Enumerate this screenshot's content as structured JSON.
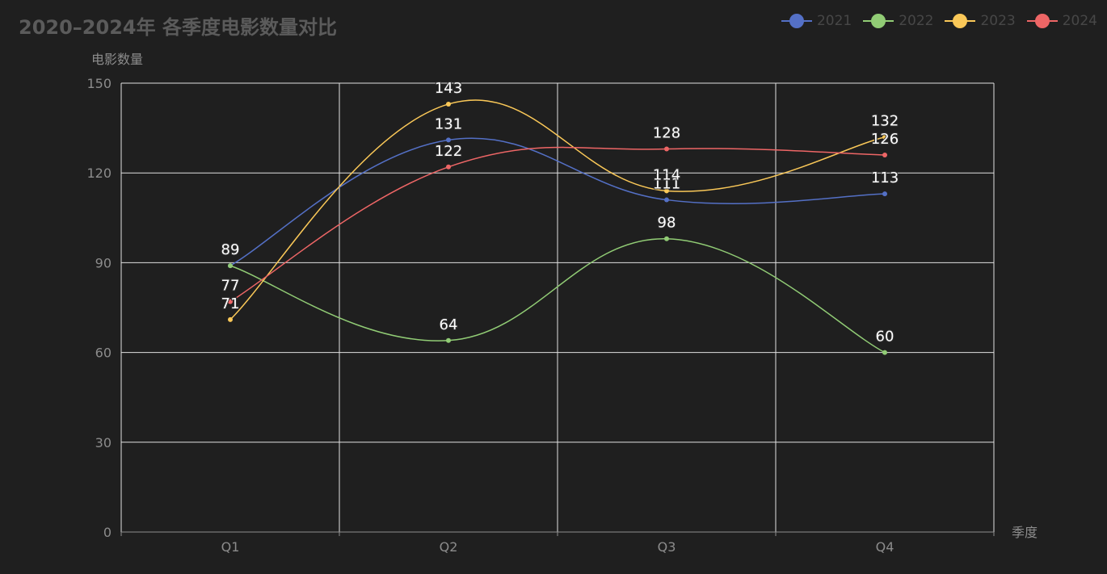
{
  "chart_data": {
    "type": "line",
    "title": "2020–2024年 各季度电影数量对比",
    "xlabel": "季度",
    "ylabel": "电影数量",
    "categories": [
      "Q1",
      "Q2",
      "Q3",
      "Q4"
    ],
    "ylim": [
      0,
      150
    ],
    "yticks": [
      0,
      30,
      60,
      90,
      120,
      150
    ],
    "grid": true,
    "smooth": true,
    "legend_position": "top-right",
    "series": [
      {
        "name": "2021",
        "color": "#5470c6",
        "values": [
          89,
          131,
          111,
          113
        ]
      },
      {
        "name": "2022",
        "color": "#91cc75",
        "values": [
          89,
          64,
          98,
          60
        ]
      },
      {
        "name": "2023",
        "color": "#fac858",
        "values": [
          71,
          143,
          114,
          132
        ]
      },
      {
        "name": "2024",
        "color": "#ee6666",
        "values": [
          77,
          122,
          128,
          126
        ]
      }
    ]
  }
}
